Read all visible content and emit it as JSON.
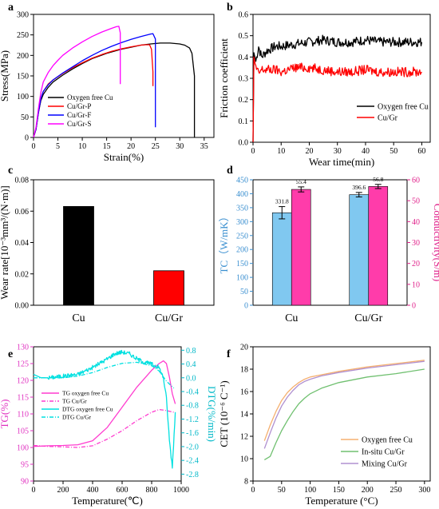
{
  "chart_data": [
    {
      "panel": "a",
      "type": "line",
      "xlabel": "Strain(%)",
      "ylabel": "Stress(MPa)",
      "xlim": [
        0,
        37
      ],
      "ylim": [
        0,
        300
      ],
      "xticks": [
        0,
        5,
        10,
        15,
        20,
        25,
        30,
        35
      ],
      "yticks": [
        0,
        50,
        100,
        150,
        200,
        250,
        300
      ],
      "legend_position": "bottom-left",
      "series": [
        {
          "name": "Oxygen free Cu",
          "color": "#000000",
          "x": [
            0,
            0.5,
            1,
            1.5,
            2,
            3,
            4,
            6,
            8,
            10,
            12,
            15,
            18,
            20,
            22,
            24,
            26,
            28,
            30,
            31,
            32,
            32.5,
            33,
            33
          ],
          "y": [
            0,
            20,
            60,
            90,
            105,
            122,
            135,
            152,
            167,
            180,
            192,
            205,
            215,
            220,
            225,
            228,
            230,
            230,
            228,
            225,
            218,
            205,
            150,
            0
          ]
        },
        {
          "name": "Cu/Gr-P",
          "color": "#ff0000",
          "x": [
            0,
            0.5,
            1,
            1.5,
            2,
            3,
            4,
            6,
            8,
            10,
            12,
            14,
            16,
            18,
            20,
            22,
            23,
            23.8,
            24.2,
            24.5,
            24.5
          ],
          "y": [
            0,
            20,
            60,
            95,
            112,
            130,
            140,
            156,
            170,
            182,
            193,
            202,
            210,
            216,
            221,
            225,
            226,
            226,
            215,
            160,
            125
          ]
        },
        {
          "name": "Cu/Gr-F",
          "color": "#0000ff",
          "x": [
            0,
            0.5,
            1,
            1.5,
            2,
            3,
            4,
            6,
            8,
            10,
            12,
            14,
            16,
            18,
            20,
            22,
            24,
            24.5,
            25,
            25,
            25
          ],
          "y": [
            0,
            20,
            60,
            95,
            112,
            128,
            140,
            157,
            172,
            187,
            200,
            212,
            222,
            231,
            239,
            246,
            252,
            253,
            240,
            120,
            25
          ]
        },
        {
          "name": "Cu/Gr-S",
          "color": "#ff00ff",
          "x": [
            0,
            0.5,
            1,
            1.5,
            2,
            3,
            4,
            5,
            6,
            8,
            10,
            12,
            14,
            16,
            17,
            17.5,
            17.8,
            17.8
          ],
          "y": [
            0,
            25,
            70,
            110,
            135,
            158,
            175,
            188,
            200,
            218,
            233,
            246,
            257,
            266,
            270,
            271,
            255,
            130
          ]
        }
      ]
    },
    {
      "panel": "b",
      "type": "line",
      "xlabel": "Wear time(min)",
      "ylabel": "Friction coefficient",
      "xlim": [
        0,
        63
      ],
      "ylim": [
        0,
        0.6
      ],
      "xticks": [
        0,
        10,
        20,
        30,
        40,
        50,
        60
      ],
      "yticks": [
        0.0,
        0.1,
        0.2,
        0.3,
        0.4,
        0.5,
        0.6
      ],
      "legend_position": "bottom-right",
      "series": [
        {
          "name": "Oxygen free Cu",
          "color": "#000000",
          "x": [
            0,
            0.3,
            1,
            2,
            3,
            5,
            8,
            10,
            15,
            20,
            25,
            30,
            35,
            40,
            45,
            50,
            55,
            60
          ],
          "y": [
            0.0,
            0.42,
            0.38,
            0.45,
            0.4,
            0.43,
            0.45,
            0.45,
            0.46,
            0.47,
            0.48,
            0.47,
            0.47,
            0.48,
            0.47,
            0.47,
            0.47,
            0.47
          ]
        },
        {
          "name": "Cu/Gr",
          "color": "#ff0000",
          "x": [
            0,
            0.3,
            1,
            2,
            3,
            5,
            8,
            10,
            15,
            20,
            25,
            30,
            35,
            40,
            45,
            50,
            55,
            60
          ],
          "y": [
            0.0,
            0.4,
            0.35,
            0.32,
            0.34,
            0.34,
            0.34,
            0.33,
            0.35,
            0.35,
            0.34,
            0.33,
            0.33,
            0.34,
            0.33,
            0.33,
            0.33,
            0.33
          ]
        }
      ]
    },
    {
      "panel": "c",
      "type": "bar",
      "xlabel": "",
      "ylabel": "Wear rate[10⁻³mm³/(N·m)]",
      "ylim": [
        0,
        0.08
      ],
      "yticks": [
        0.0,
        0.02,
        0.04,
        0.06,
        0.08
      ],
      "categories": [
        "Cu",
        "Cu/Gr"
      ],
      "values": [
        0.063,
        0.022
      ],
      "colors": [
        "#000000",
        "#ff0000"
      ]
    },
    {
      "panel": "d",
      "type": "bar",
      "xlabel": "",
      "ylabel": "TC（W/mK）",
      "y2label": "Conductivity(S/m)",
      "ylim": [
        0,
        450
      ],
      "y2lim": [
        0,
        60
      ],
      "yticks": [
        0,
        50,
        100,
        150,
        200,
        250,
        300,
        350,
        400,
        450
      ],
      "y2ticks": [
        0,
        10,
        20,
        30,
        40,
        50,
        60
      ],
      "categories": [
        "Cu",
        "Cu/Gr"
      ],
      "series": [
        {
          "name": "TC",
          "axis": "left",
          "color": "#80c8f0",
          "values": [
            331.8,
            396.6
          ],
          "errors": [
            22,
            8
          ],
          "labels": [
            "331.8",
            "396.6"
          ]
        },
        {
          "name": "Conductivity",
          "axis": "right",
          "color": "#ff3caa",
          "values": [
            55.4,
            56.8
          ],
          "errors": [
            1.2,
            1.0
          ],
          "labels": [
            "55.4",
            "56.8"
          ]
        }
      ]
    },
    {
      "panel": "e",
      "type": "line",
      "xlabel": "Temperature(℃)",
      "ylabel": "TG(%)",
      "y2label": "DTG(%/min)",
      "xlim": [
        0,
        1000
      ],
      "ylim": [
        90,
        130
      ],
      "y2lim": [
        -3.0,
        0.9
      ],
      "xticks": [
        0,
        200,
        400,
        600,
        800,
        1000
      ],
      "yticks": [
        90,
        95,
        100,
        105,
        110,
        115,
        120,
        125,
        130
      ],
      "y2ticks": [
        0.8,
        0.4,
        0.0,
        -0.4,
        -0.8,
        -1.2,
        -1.6,
        -2.0,
        -2.4,
        -2.8
      ],
      "legend_position": "middle",
      "series": [
        {
          "name": "TG oxygen free Cu",
          "axis": "left",
          "color": "#ff3ccf",
          "dash": "solid",
          "x": [
            0,
            100,
            200,
            300,
            400,
            500,
            600,
            700,
            800,
            850,
            880,
            900,
            920,
            940,
            960
          ],
          "y": [
            100.3,
            100.5,
            100.6,
            100.8,
            102,
            106,
            112,
            118,
            123,
            125,
            125.8,
            125,
            121,
            116,
            113
          ]
        },
        {
          "name": "TG Cu/Gr",
          "axis": "left",
          "color": "#ff3ccf",
          "dash": "dashdot",
          "x": [
            0,
            100,
            200,
            300,
            400,
            500,
            600,
            700,
            800,
            850,
            900,
            950
          ],
          "y": [
            100.6,
            100.3,
            100.2,
            100.0,
            100.5,
            102.5,
            105,
            108,
            110.5,
            111.3,
            111,
            110.5
          ]
        },
        {
          "name": "DTG oxygen free Cu",
          "axis": "right",
          "color": "#00e0e0",
          "dash": "solid",
          "x": [
            0,
            50,
            100,
            200,
            300,
            400,
            500,
            550,
            600,
            650,
            700,
            750,
            800,
            850,
            880,
            900,
            920,
            940,
            960
          ],
          "y": [
            0.1,
            0.0,
            0.0,
            0.05,
            0.1,
            0.3,
            0.55,
            0.7,
            0.75,
            0.7,
            0.55,
            0.45,
            0.4,
            0.3,
            0.0,
            -0.6,
            -1.8,
            -2.6,
            -1.0
          ]
        },
        {
          "name": "DTG Cu/Gr",
          "axis": "right",
          "color": "#00e0e0",
          "dash": "dashdot",
          "x": [
            0,
            100,
            200,
            300,
            400,
            500,
            600,
            700,
            800,
            850,
            900,
            950
          ],
          "y": [
            0.0,
            0.0,
            0.0,
            0.05,
            0.15,
            0.3,
            0.42,
            0.45,
            0.35,
            0.2,
            -0.1,
            -0.3
          ]
        }
      ]
    },
    {
      "panel": "f",
      "type": "line",
      "xlabel": "Temperature (°C)",
      "ylabel": "CET (10⁻⁶ C⁻¹)",
      "xlim": [
        0,
        310
      ],
      "ylim": [
        8,
        20
      ],
      "xticks": [
        0,
        50,
        100,
        150,
        200,
        250,
        300
      ],
      "yticks": [
        8,
        10,
        12,
        14,
        16,
        18,
        20
      ],
      "legend_position": "bottom-right",
      "series": [
        {
          "name": "Oxygen free Cu",
          "color": "#f5b070",
          "x": [
            20,
            30,
            40,
            50,
            60,
            70,
            80,
            90,
            100,
            120,
            150,
            200,
            250,
            300
          ],
          "y": [
            11.6,
            13.0,
            14.2,
            15.2,
            15.9,
            16.4,
            16.8,
            17.1,
            17.3,
            17.5,
            17.8,
            18.2,
            18.5,
            18.8
          ]
        },
        {
          "name": "In-situ Cu/Gr",
          "color": "#70c070",
          "x": [
            20,
            30,
            40,
            50,
            60,
            70,
            80,
            90,
            100,
            120,
            150,
            200,
            250,
            300
          ],
          "y": [
            9.9,
            10.2,
            11.4,
            12.5,
            13.4,
            14.2,
            14.9,
            15.4,
            15.8,
            16.3,
            16.8,
            17.3,
            17.6,
            18.0
          ]
        },
        {
          "name": "Mixing Cu/Gr",
          "color": "#b090d0",
          "x": [
            20,
            30,
            40,
            50,
            60,
            70,
            80,
            90,
            100,
            120,
            150,
            200,
            250,
            300
          ],
          "y": [
            10.9,
            12.3,
            13.6,
            14.7,
            15.5,
            16.1,
            16.6,
            16.9,
            17.1,
            17.4,
            17.7,
            18.1,
            18.4,
            18.7
          ]
        }
      ]
    }
  ]
}
